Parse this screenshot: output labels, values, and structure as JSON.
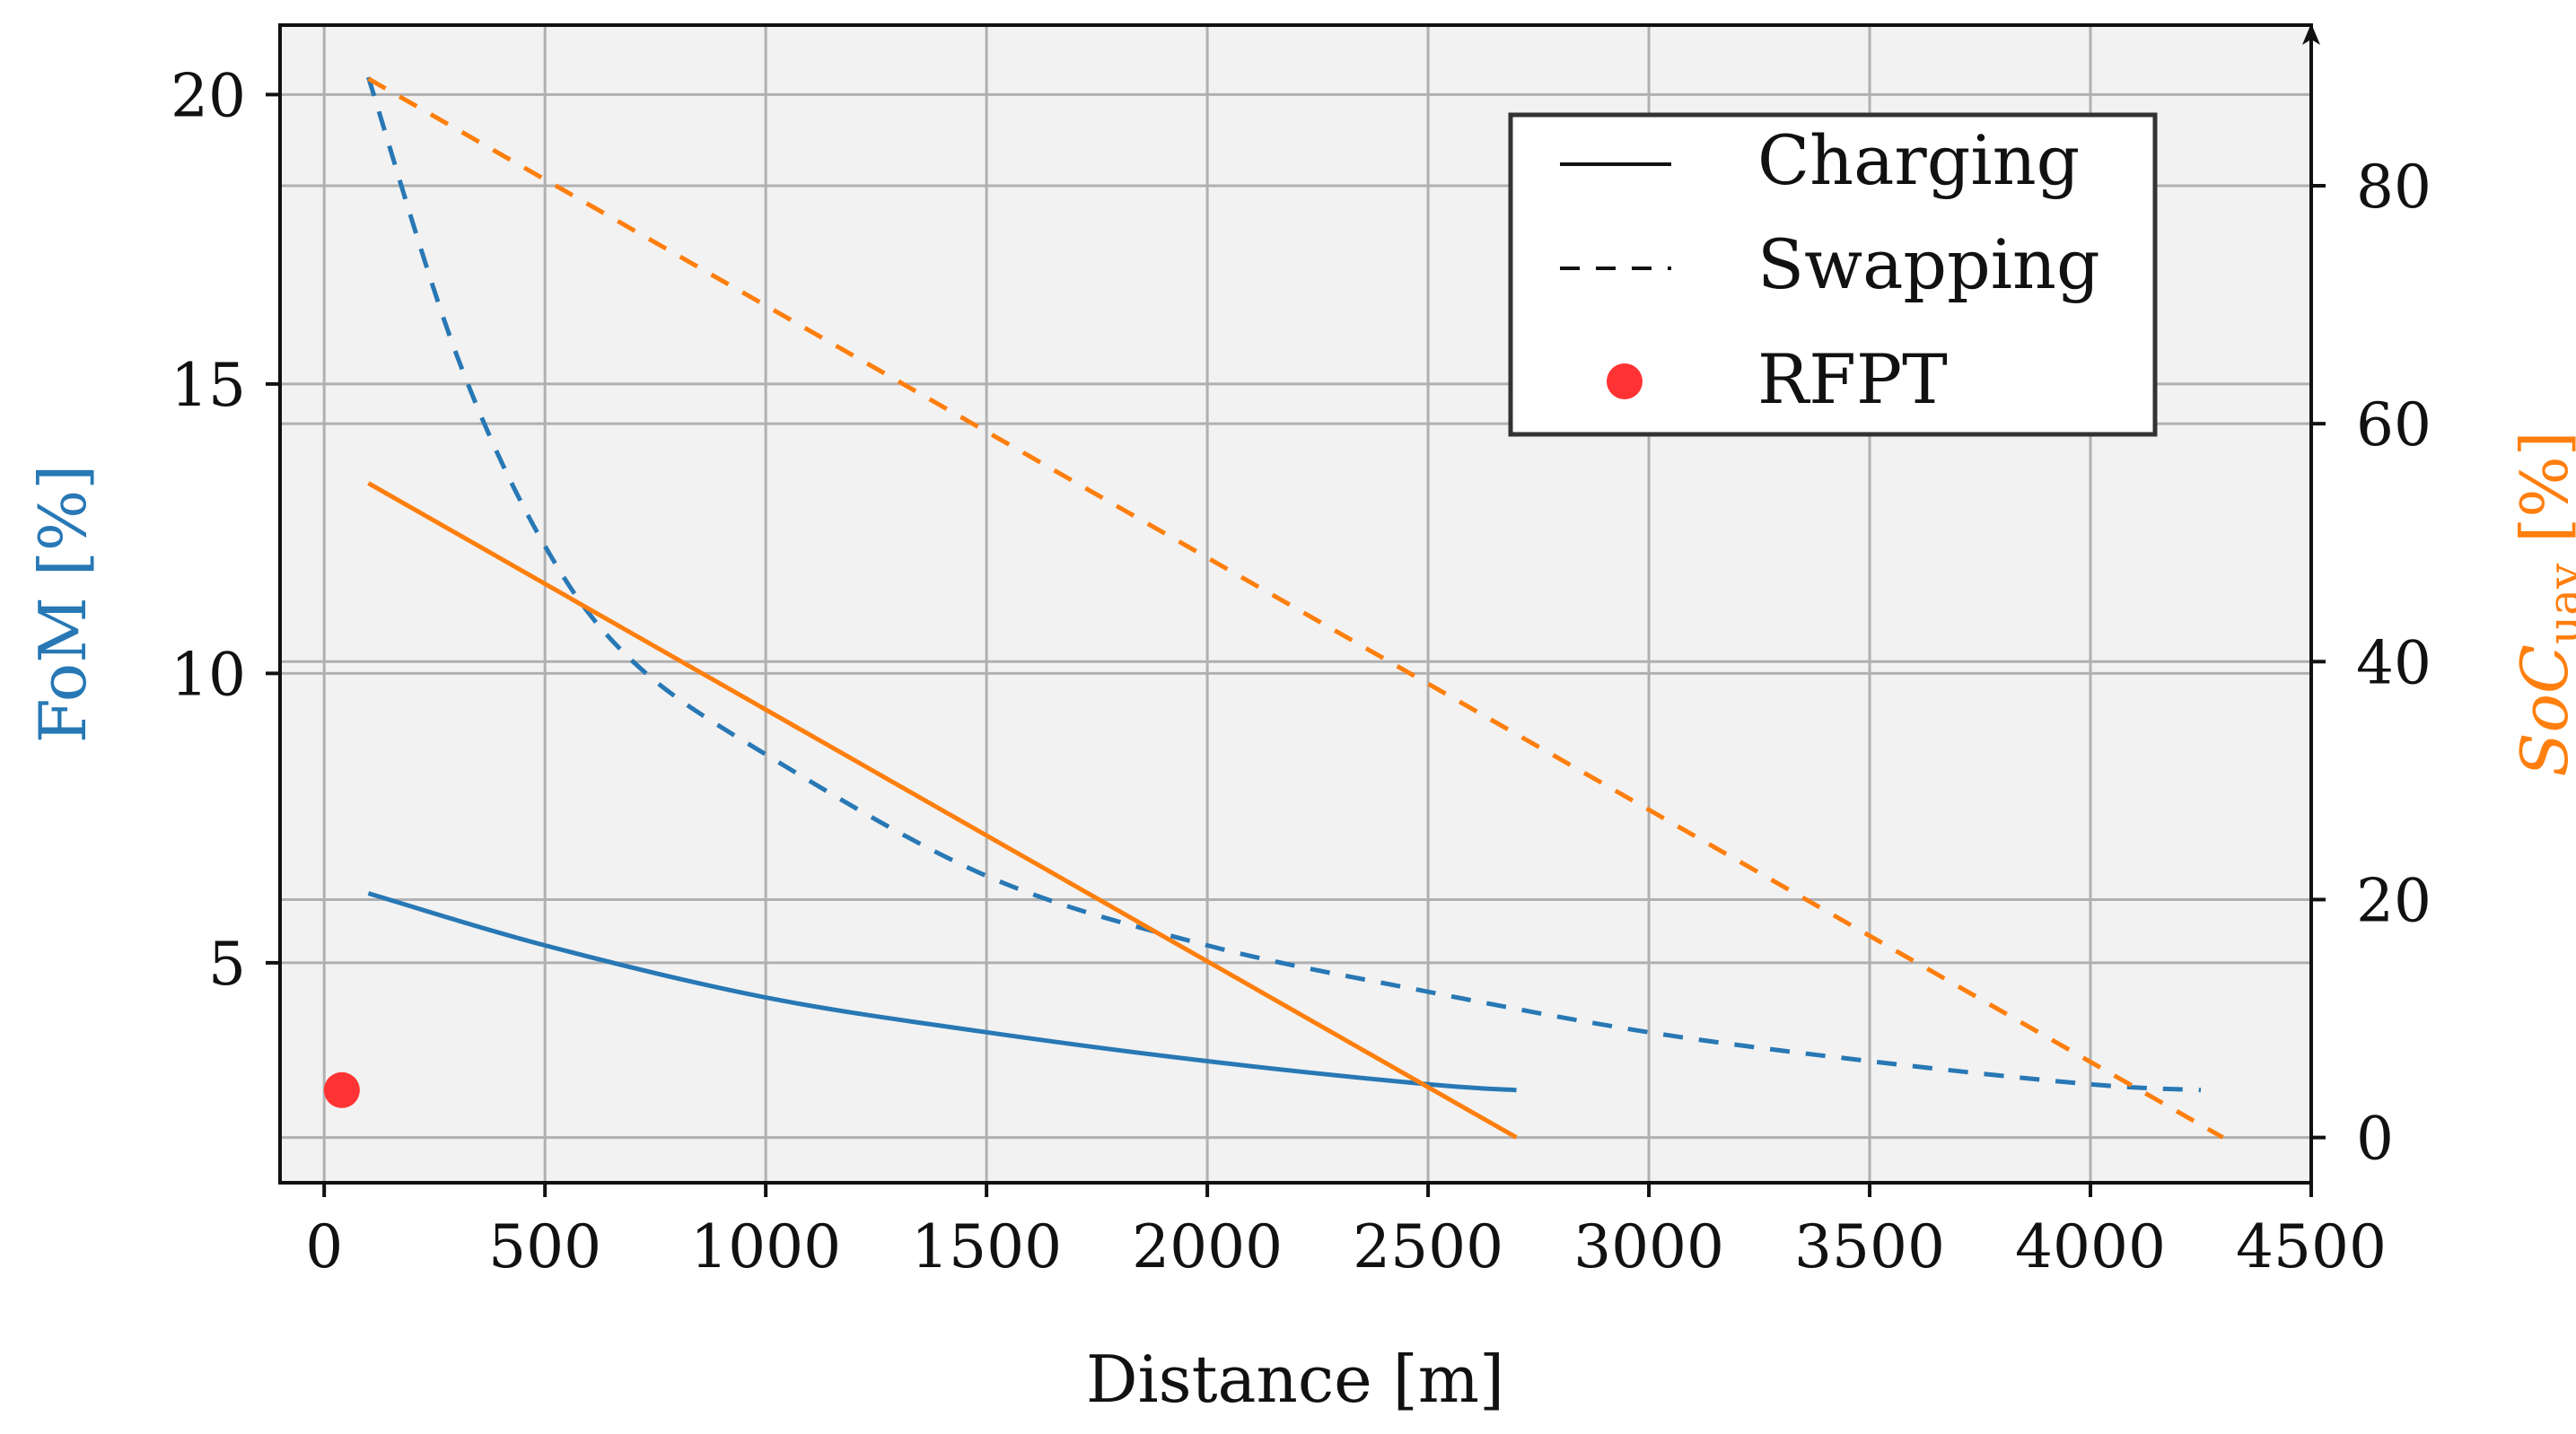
{
  "colors": {
    "blue": "#2878b5",
    "orange": "#ff7f0e",
    "red": "#ff3333",
    "plot_bg": "#f2f2f2",
    "grid": "#b0b0b0"
  },
  "chart_data": {
    "type": "line",
    "xlabel": "Distance [m]",
    "ylabel_left": "FoM [%]",
    "ylabel_right": "SoC",
    "ylabel_right_sub": "uav",
    "ylabel_right_unit": " [%]",
    "xlim": [
      -100,
      4500
    ],
    "ylim_left": [
      1.2,
      21.2
    ],
    "ylim_right": [
      -3.8,
      93.5
    ],
    "x_ticks": [
      0,
      500,
      1000,
      1500,
      2000,
      2500,
      3000,
      3500,
      4000,
      4500
    ],
    "x_tick_labels": [
      "0",
      "500",
      "1000",
      "1500",
      "2000",
      "2500",
      "3000",
      "3500",
      "4000",
      "4500"
    ],
    "y_left_ticks": [
      5,
      10,
      15,
      20
    ],
    "y_left_tick_labels": [
      "5",
      "10",
      "15",
      "20"
    ],
    "y_right_ticks": [
      0,
      20,
      40,
      60,
      80
    ],
    "y_right_tick_labels": [
      "0",
      "20",
      "40",
      "60",
      "80"
    ],
    "grid": true,
    "legend": {
      "placement": "top-right",
      "entries": [
        {
          "label": "Charging",
          "style": "solid"
        },
        {
          "label": "Swapping",
          "style": "dashed"
        },
        {
          "label": "RFPT",
          "style": "marker"
        }
      ]
    },
    "series": [
      {
        "axis": "left",
        "color": "blue",
        "style": "solid",
        "x": [
          100,
          500,
          1000,
          1500,
          2000,
          2500,
          2700
        ],
        "y": [
          6.2,
          5.3,
          4.4,
          3.8,
          3.3,
          2.9,
          2.8
        ]
      },
      {
        "axis": "left",
        "color": "blue",
        "style": "dashed",
        "x": [
          100,
          300,
          500,
          700,
          1000,
          1500,
          2000,
          2500,
          3000,
          3500,
          4000,
          4250
        ],
        "y": [
          20.3,
          15.5,
          12.2,
          10.2,
          8.6,
          6.5,
          5.3,
          4.5,
          3.8,
          3.3,
          2.9,
          2.8
        ]
      },
      {
        "axis": "right",
        "color": "orange",
        "style": "solid",
        "x": [
          100,
          2700
        ],
        "y": [
          55,
          0
        ]
      },
      {
        "axis": "right",
        "color": "orange",
        "style": "dashed",
        "x": [
          100,
          4300
        ],
        "y": [
          89,
          0
        ]
      }
    ],
    "markers": [
      {
        "axis": "left",
        "color": "red",
        "x": 40,
        "y": 2.8
      }
    ]
  }
}
